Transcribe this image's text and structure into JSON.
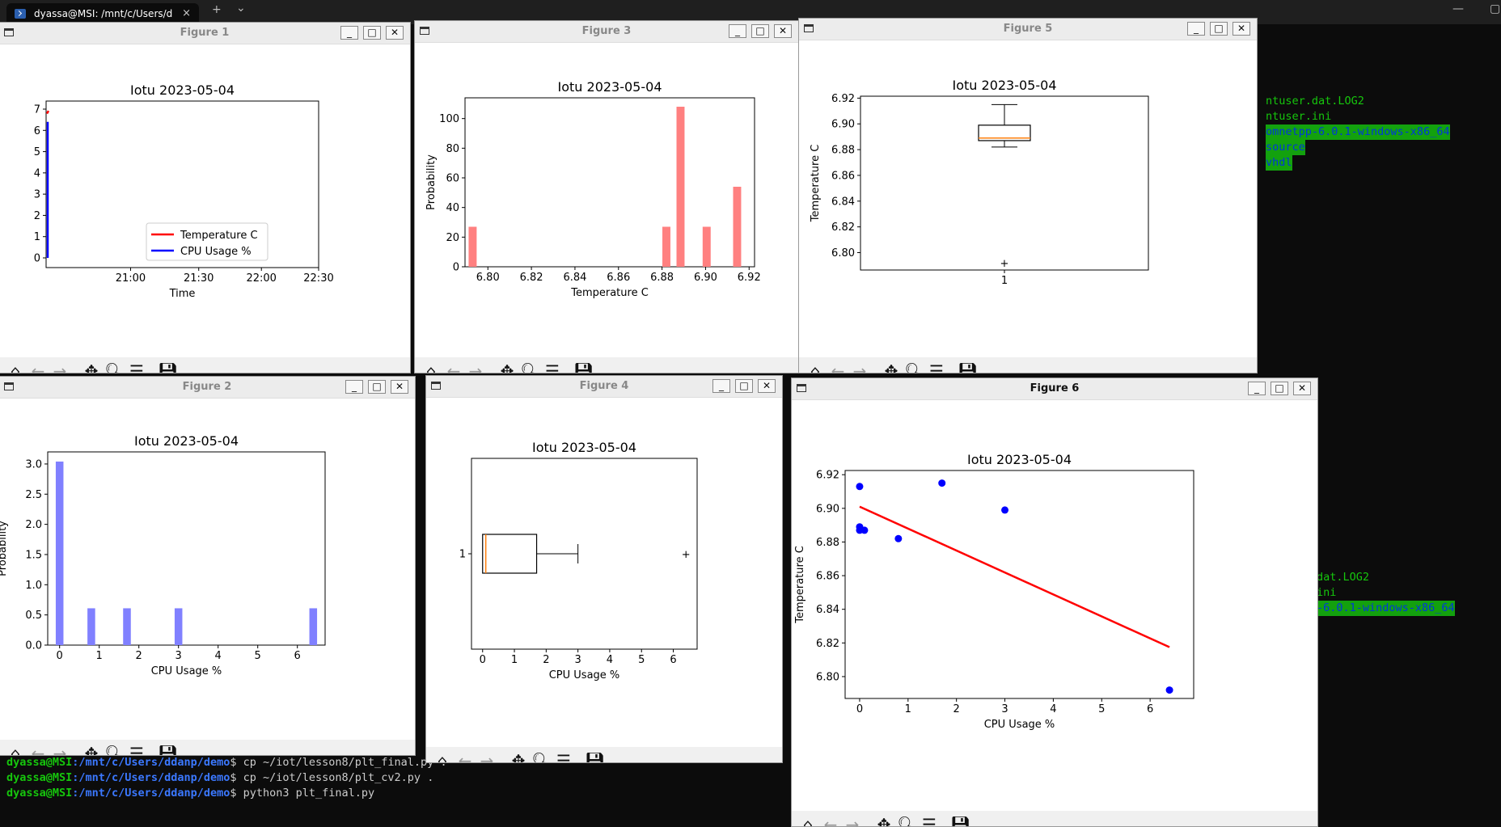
{
  "terminal": {
    "tab_title": "dyassa@MSI: /mnt/c/Users/d",
    "new_tab": "+",
    "tab_close": "×",
    "dropdown": "⌄",
    "window_minimize": "—",
    "window_maximize": "▢",
    "right_listing_top": [
      "ntuser.dat.LOG2",
      "ntuser.ini",
      "omnetpp-6.0.1-windows-x86_64",
      "source",
      "vhdl"
    ],
    "right_listing_bottom": [
      "dat.LOG2",
      "ini",
      "-6.0.1-windows-x86_64"
    ],
    "prompt_user": "dyassa@MSI",
    "prompt_path": ":/mnt/c/Users/ddanp/demo",
    "commands": [
      "$ cp ~/iot/lesson8/plt_final.py .",
      "$ cp ~/iot/lesson8/plt_cv2.py .",
      "$ python3 plt_final.py"
    ]
  },
  "figures": {
    "fig1": {
      "title": "Figure 1",
      "plot_title": "Iotu 2023-05-04"
    },
    "fig2": {
      "title": "Figure 2",
      "plot_title": "Iotu 2023-05-04"
    },
    "fig3": {
      "title": "Figure 3",
      "plot_title": "Iotu 2023-05-04"
    },
    "fig4": {
      "title": "Figure 4",
      "plot_title": "Iotu 2023-05-04"
    },
    "fig5": {
      "title": "Figure 5",
      "plot_title": "Iotu 2023-05-04"
    },
    "fig6": {
      "title": "Figure 6",
      "plot_title": "Iotu 2023-05-04"
    }
  },
  "window_buttons": {
    "minimize": "_",
    "maximize": "□",
    "close": "✕"
  },
  "toolbar_icons": [
    "home-icon",
    "back-arrow-icon",
    "forward-arrow-icon",
    "pan-icon",
    "zoom-icon",
    "configure-icon",
    "save-icon"
  ],
  "chart_data": [
    {
      "id": "fig1",
      "type": "line",
      "title": "Iotu 2023-05-04",
      "xlabel": "Time",
      "ylabel": "",
      "xticks": [
        "21:00",
        "21:30",
        "22:00",
        "22:30"
      ],
      "ylim": [
        0,
        7
      ],
      "yticks": [
        "0",
        "1",
        "2",
        "3",
        "4",
        "5",
        "6",
        "7"
      ],
      "series": [
        {
          "name": "Temperature C",
          "color": "#ff0000"
        },
        {
          "name": "CPU Usage %",
          "color": "#0000ff"
        }
      ],
      "legend": "lower-right"
    },
    {
      "id": "fig2",
      "type": "bar",
      "title": "Iotu 2023-05-04",
      "xlabel": "CPU Usage %",
      "ylabel": "Probability",
      "xlim": [
        -0.3,
        6.7
      ],
      "xticks": [
        "0",
        "1",
        "2",
        "3",
        "4",
        "5",
        "6"
      ],
      "ylim": [
        0,
        3.2
      ],
      "yticks": [
        "0.0",
        "0.5",
        "1.0",
        "1.5",
        "2.0",
        "2.5",
        "3.0"
      ],
      "color": "#8080ff",
      "bars": [
        {
          "x": 0.0,
          "y": 3.04
        },
        {
          "x": 0.8,
          "y": 0.61
        },
        {
          "x": 1.7,
          "y": 0.61
        },
        {
          "x": 3.0,
          "y": 0.61
        },
        {
          "x": 6.4,
          "y": 0.61
        }
      ]
    },
    {
      "id": "fig3",
      "type": "bar",
      "title": "Iotu 2023-05-04",
      "xlabel": "Temperature C",
      "ylabel": "Probability",
      "xlim": [
        6.7895,
        6.9225
      ],
      "xticks": [
        "6.80",
        "6.82",
        "6.84",
        "6.86",
        "6.88",
        "6.90",
        "6.92"
      ],
      "ylim": [
        0,
        114
      ],
      "yticks": [
        "0",
        "20",
        "40",
        "60",
        "80",
        "100"
      ],
      "color": "#ff8080",
      "bars": [
        {
          "x": 6.793,
          "y": 27
        },
        {
          "x": 6.882,
          "y": 27
        },
        {
          "x": 6.8885,
          "y": 108
        },
        {
          "x": 6.9005,
          "y": 27
        },
        {
          "x": 6.9145,
          "y": 54
        }
      ]
    },
    {
      "id": "fig4",
      "type": "box",
      "orientation": "horizontal",
      "title": "Iotu 2023-05-04",
      "xlabel": "CPU Usage %",
      "ylabel": "",
      "xlim": [
        -0.35,
        6.75
      ],
      "xticks": [
        "0",
        "1",
        "2",
        "3",
        "4",
        "5",
        "6"
      ],
      "yticks": [
        "1"
      ],
      "box": {
        "whisker_low": 0.0,
        "q1": 0.0,
        "median": 0.1,
        "q3": 1.7,
        "whisker_high": 3.0,
        "outliers": [
          6.4
        ]
      }
    },
    {
      "id": "fig5",
      "type": "box",
      "orientation": "vertical",
      "title": "Iotu 2023-05-04",
      "xlabel": "",
      "ylabel": "Temperature C",
      "ylim": [
        6.7865,
        6.9215
      ],
      "yticks": [
        "6.80",
        "6.82",
        "6.84",
        "6.86",
        "6.88",
        "6.90",
        "6.92"
      ],
      "xticks": [
        "1"
      ],
      "box": {
        "whisker_low": 6.882,
        "q1": 6.887,
        "median": 6.889,
        "q3": 6.899,
        "whisker_high": 6.915,
        "outliers": [
          6.792
        ]
      }
    },
    {
      "id": "fig6",
      "type": "scatter",
      "title": "Iotu 2023-05-04",
      "xlabel": "CPU Usage %",
      "ylabel": "Temperature C",
      "xlim": [
        -0.3,
        6.9
      ],
      "xticks": [
        "0",
        "1",
        "2",
        "3",
        "4",
        "5",
        "6"
      ],
      "ylim": [
        6.787,
        6.9225
      ],
      "yticks": [
        "6.80",
        "6.82",
        "6.84",
        "6.86",
        "6.88",
        "6.90",
        "6.92"
      ],
      "points": [
        {
          "x": 0.0,
          "y": 6.913
        },
        {
          "x": 0.0,
          "y": 6.889
        },
        {
          "x": 0.0,
          "y": 6.887
        },
        {
          "x": 0.1,
          "y": 6.887
        },
        {
          "x": 0.8,
          "y": 6.882
        },
        {
          "x": 1.7,
          "y": 6.915
        },
        {
          "x": 3.0,
          "y": 6.899
        },
        {
          "x": 6.4,
          "y": 6.792
        }
      ],
      "point_color": "#0000ff",
      "fit_line": {
        "x": [
          0.0,
          6.4
        ],
        "y": [
          6.901,
          6.8175
        ],
        "color": "#ff0000"
      }
    }
  ]
}
